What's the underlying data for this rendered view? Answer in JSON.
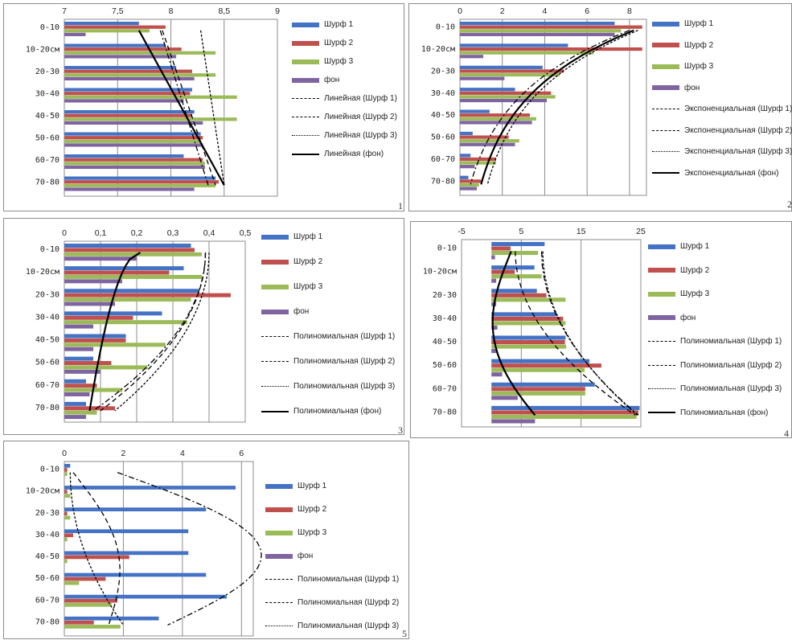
{
  "colors": {
    "series": [
      "#4472c4",
      "#c0504d",
      "#9bbb59",
      "#8064a2"
    ],
    "trend": "#000000",
    "grid": "#8c8c8c"
  },
  "chart_data": [
    {
      "type": "bar",
      "orientation": "horizontal",
      "panel_number": "1",
      "categories": [
        "0-10",
        "10-20см",
        "20-30",
        "30-40",
        "40-50",
        "50-60",
        "60-70",
        "70-80"
      ],
      "xlim": [
        7,
        9
      ],
      "xticks": [
        7,
        7.5,
        8,
        8.5,
        9
      ],
      "xtick_labels": [
        "7",
        "7,5",
        "8",
        "8,5",
        "9"
      ],
      "grid": true,
      "legend_position": "right",
      "series": [
        {
          "name": "Шурф 1",
          "values": [
            7.7,
            7.95,
            8.05,
            8.2,
            8.22,
            8.28,
            8.12,
            8.42
          ]
        },
        {
          "name": "Шурф 2",
          "values": [
            7.95,
            8.1,
            8.2,
            8.18,
            8.2,
            8.3,
            8.3,
            8.45
          ]
        },
        {
          "name": "Шурф 3",
          "values": [
            7.8,
            8.42,
            8.42,
            8.62,
            8.62,
            8.28,
            8.32,
            8.42
          ]
        },
        {
          "name": "фон",
          "values": [
            7.2,
            8.05,
            8.22,
            8.12,
            8.3,
            8.3,
            8.32,
            8.22
          ]
        }
      ],
      "trendlines": [
        {
          "name": "Линейная (Шурф 1)",
          "style": "dashdot",
          "from": [
            7.9,
            0
          ],
          "to": [
            8.35,
            7
          ]
        },
        {
          "name": "Линейная (Шурф 2)",
          "style": "dash",
          "from": [
            7.92,
            0
          ],
          "to": [
            8.42,
            7
          ]
        },
        {
          "name": "Линейная (Шурф 3)",
          "style": "dot",
          "from": [
            8.28,
            0
          ],
          "to": [
            8.5,
            7
          ]
        },
        {
          "name": "Линейная (фон)",
          "style": "solid",
          "from": [
            7.7,
            0
          ],
          "to": [
            8.5,
            7
          ]
        }
      ]
    },
    {
      "type": "bar",
      "orientation": "horizontal",
      "panel_number": "2",
      "categories": [
        "0-10",
        "10-20см",
        "20-30",
        "30-40",
        "40-50",
        "50-60",
        "60-70",
        "70-80"
      ],
      "xlim": [
        0,
        8.8
      ],
      "xticks": [
        0,
        2,
        4,
        6,
        8
      ],
      "xtick_labels": [
        "0",
        "2",
        "4",
        "6",
        "8"
      ],
      "grid": true,
      "legend_position": "right",
      "series": [
        {
          "name": "Шурф 1",
          "values": [
            7.3,
            5.1,
            3.9,
            2.6,
            1.4,
            0.6,
            0.5,
            0.4
          ]
        },
        {
          "name": "Шурф 2",
          "values": [
            8.6,
            8.6,
            4.9,
            4.3,
            3.3,
            2.3,
            1.7,
            1.0
          ]
        },
        {
          "name": "Шурф 3",
          "values": [
            7.6,
            6.3,
            4.7,
            4.5,
            3.6,
            2.8,
            1.7,
            0.9
          ]
        },
        {
          "name": "фон",
          "values": [
            7.3,
            1.1,
            2.1,
            4.1,
            3.4,
            2.6,
            0.7,
            0.8
          ]
        }
      ],
      "trendlines": [
        {
          "name": "Экспоненциальная (Шурф 1)",
          "style": "dashdot",
          "end_top": 8.0,
          "end_bottom": 0.5
        },
        {
          "name": "Экспоненциальная (Шурф 2)",
          "style": "dash",
          "end_top": 8.2,
          "end_bottom": 1.0
        },
        {
          "name": "Экспоненциальная (Шурф 3)",
          "style": "dot",
          "end_top": 8.4,
          "end_bottom": 1.3
        },
        {
          "name": "Экспоненциальная (фон)",
          "style": "solid",
          "end_top": 8.2,
          "end_bottom": 1.0
        }
      ]
    },
    {
      "type": "bar",
      "orientation": "horizontal",
      "panel_number": "3",
      "categories": [
        "0-10",
        "10-20см",
        "20-30",
        "30-40",
        "40-50",
        "50-60",
        "60-70",
        "70-80"
      ],
      "xlim": [
        0,
        0.5
      ],
      "xticks": [
        0,
        0.1,
        0.2,
        0.3,
        0.4,
        0.5
      ],
      "xtick_labels": [
        "0",
        "0,1",
        "0,2",
        "0,3",
        "0,4",
        "0,5"
      ],
      "grid": true,
      "legend_position": "right",
      "series": [
        {
          "name": "Шурф 1",
          "values": [
            0.35,
            0.33,
            0.37,
            0.27,
            0.17,
            0.08,
            0.06,
            0.06
          ]
        },
        {
          "name": "Шурф 2",
          "values": [
            0.36,
            0.29,
            0.46,
            0.19,
            0.17,
            0.13,
            0.09,
            0.14
          ]
        },
        {
          "name": "Шурф 3",
          "values": [
            0.38,
            0.38,
            0.35,
            0.34,
            0.28,
            0.23,
            0.16,
            0.09
          ]
        },
        {
          "name": "фон",
          "values": [
            0.2,
            0.16,
            0.14,
            0.08,
            0.08,
            0.1,
            0.07,
            0.06
          ]
        }
      ],
      "trendlines": [
        {
          "name": "Полиномиальная (Шурф 1)",
          "style": "dashdot",
          "end_top": 0.39,
          "end_bottom": 0.08
        },
        {
          "name": "Полиномиальная (Шурф 2)",
          "style": "dash",
          "end_top": 0.39,
          "end_bottom": 0.1
        },
        {
          "name": "Полиномиальная (Шурф 3)",
          "style": "dot",
          "end_top": 0.4,
          "end_bottom": 0.14
        },
        {
          "name": "Полиномиальная (фон)",
          "style": "solid",
          "end_top": 0.21,
          "end_bottom": 0.07
        }
      ]
    },
    {
      "type": "bar",
      "orientation": "horizontal",
      "panel_number": "4",
      "categories": [
        "0-10",
        "10-20см",
        "20-30",
        "30-40",
        "40-50",
        "50-60",
        "60-70",
        "70-80"
      ],
      "xlim": [
        -5,
        25
      ],
      "xticks": [
        -5,
        5,
        15,
        25
      ],
      "xtick_labels": [
        "-5",
        "5",
        "15",
        "25"
      ],
      "grid": true,
      "legend_position": "right",
      "series": [
        {
          "name": "Шурф 1",
          "values": [
            8.9,
            7.2,
            7.6,
            10.9,
            12.4,
            16.4,
            17.3,
            24.8
          ]
        },
        {
          "name": "Шурф 2",
          "values": [
            3.2,
            3.9,
            9.2,
            12.0,
            12.3,
            18.4,
            15.7,
            24.6
          ]
        },
        {
          "name": "Шурф 3",
          "values": [
            7.8,
            8.4,
            12.4,
            12.4,
            12.5,
            15.6,
            15.7,
            24.3
          ]
        },
        {
          "name": "фон",
          "values": [
            0.6,
            0.8,
            0.8,
            1.0,
            1.0,
            1.8,
            4.4,
            7.3
          ]
        }
      ],
      "trendlines": [
        {
          "name": "Полиномиальная (Шурф 1)",
          "style": "dashdot",
          "end_top": 8.4,
          "end_bottom": 24.6
        },
        {
          "name": "Полиномиальная (Шурф 2)",
          "style": "dash",
          "end_top": 4.0,
          "end_bottom": 24.1
        },
        {
          "name": "Полиномиальная (Шурф 3)",
          "style": "dot",
          "end_top": 8.6,
          "end_bottom": 24.4
        },
        {
          "name": "Полиномиальная (фон)",
          "style": "solid",
          "end_top": 3.3,
          "end_bottom": 7.3
        }
      ]
    },
    {
      "type": "bar",
      "orientation": "horizontal",
      "panel_number": "5",
      "categories": [
        "0-10",
        "10-20см",
        "20-30",
        "30-40",
        "40-50",
        "50-60",
        "60-70",
        "70-80"
      ],
      "xlim": [
        0,
        6.4
      ],
      "xticks": [
        0,
        2,
        4,
        6
      ],
      "xtick_labels": [
        "0",
        "2",
        "4",
        "6"
      ],
      "grid": true,
      "legend_position": "right",
      "series": [
        {
          "name": "Шурф 1",
          "values": [
            0.2,
            5.8,
            4.8,
            4.2,
            4.2,
            4.8,
            5.5,
            3.2
          ]
        },
        {
          "name": "Шурф 2",
          "values": [
            0.1,
            0.1,
            0.1,
            0.3,
            2.2,
            1.4,
            1.8,
            1.0
          ]
        },
        {
          "name": "Шурф 3",
          "values": [
            0.1,
            0.2,
            0.2,
            0.1,
            0.1,
            0.5,
            1.6,
            1.9
          ]
        },
        {
          "name": "фон",
          "values": [
            0,
            0,
            0,
            0,
            0,
            0,
            0,
            0
          ]
        }
      ],
      "trendlines": [
        {
          "name": "Полиномиальная (Шурф 1)",
          "style": "dashdot",
          "end_top": 1.8,
          "end_bottom": 3.5
        },
        {
          "name": "Полиномиальная (Шурф 2)",
          "style": "dash",
          "end_top": 0.3,
          "end_bottom": 1.5
        },
        {
          "name": "Полиномиальная (Шурф 3)",
          "style": "dot",
          "end_top": 0.2,
          "end_bottom": 2.0
        }
      ]
    }
  ]
}
